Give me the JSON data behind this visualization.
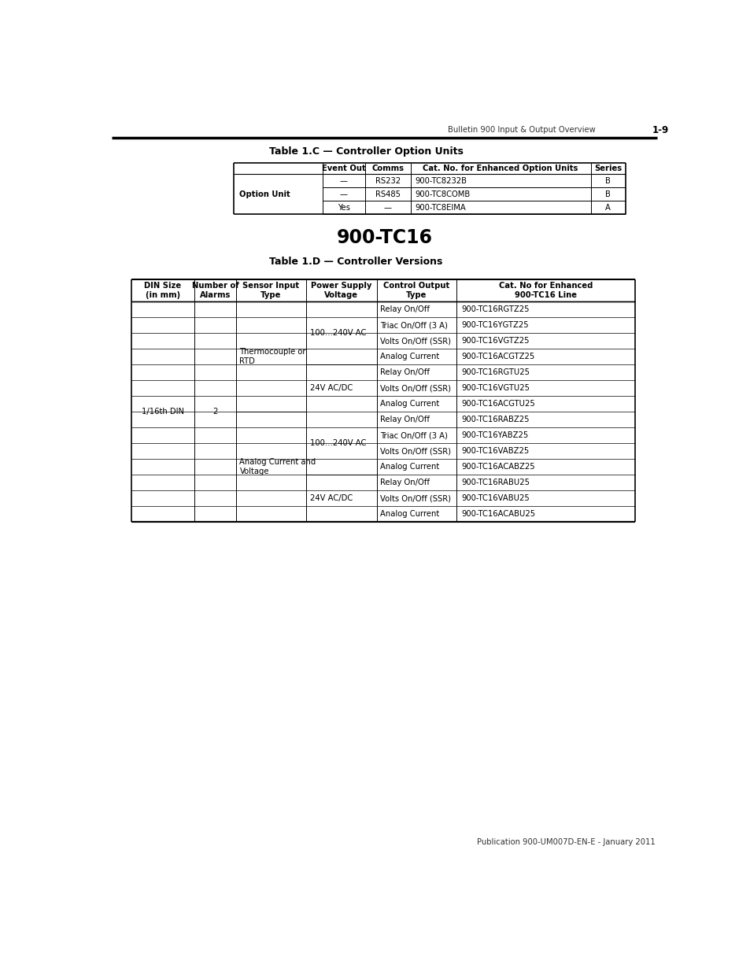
{
  "page_header_left": "Bulletin 900 Input & Output Overview",
  "page_header_right": "1-9",
  "table_c_title": "Table 1.C — Controller Option Units",
  "table_c_headers": [
    "Event Out",
    "Comms",
    "Cat. No. for Enhanced Option Units",
    "Series"
  ],
  "section_title": "900-TC16",
  "table_d_title": "Table 1.D — Controller Versions",
  "table_d_headers": [
    "DIN Size\n(in mm)",
    "Number of\nAlarms",
    "Sensor Input\nType",
    "Power Supply\nVoltage",
    "Control Output\nType",
    "Cat. No for Enhanced\n900-TC16 Line"
  ],
  "footer_text": "Publication 900-UM007D-EN-E - January 2011",
  "bg_color": "#ffffff",
  "body_font_size": 7.2,
  "header_font_size": 7.2,
  "title_font_size": 9.0
}
